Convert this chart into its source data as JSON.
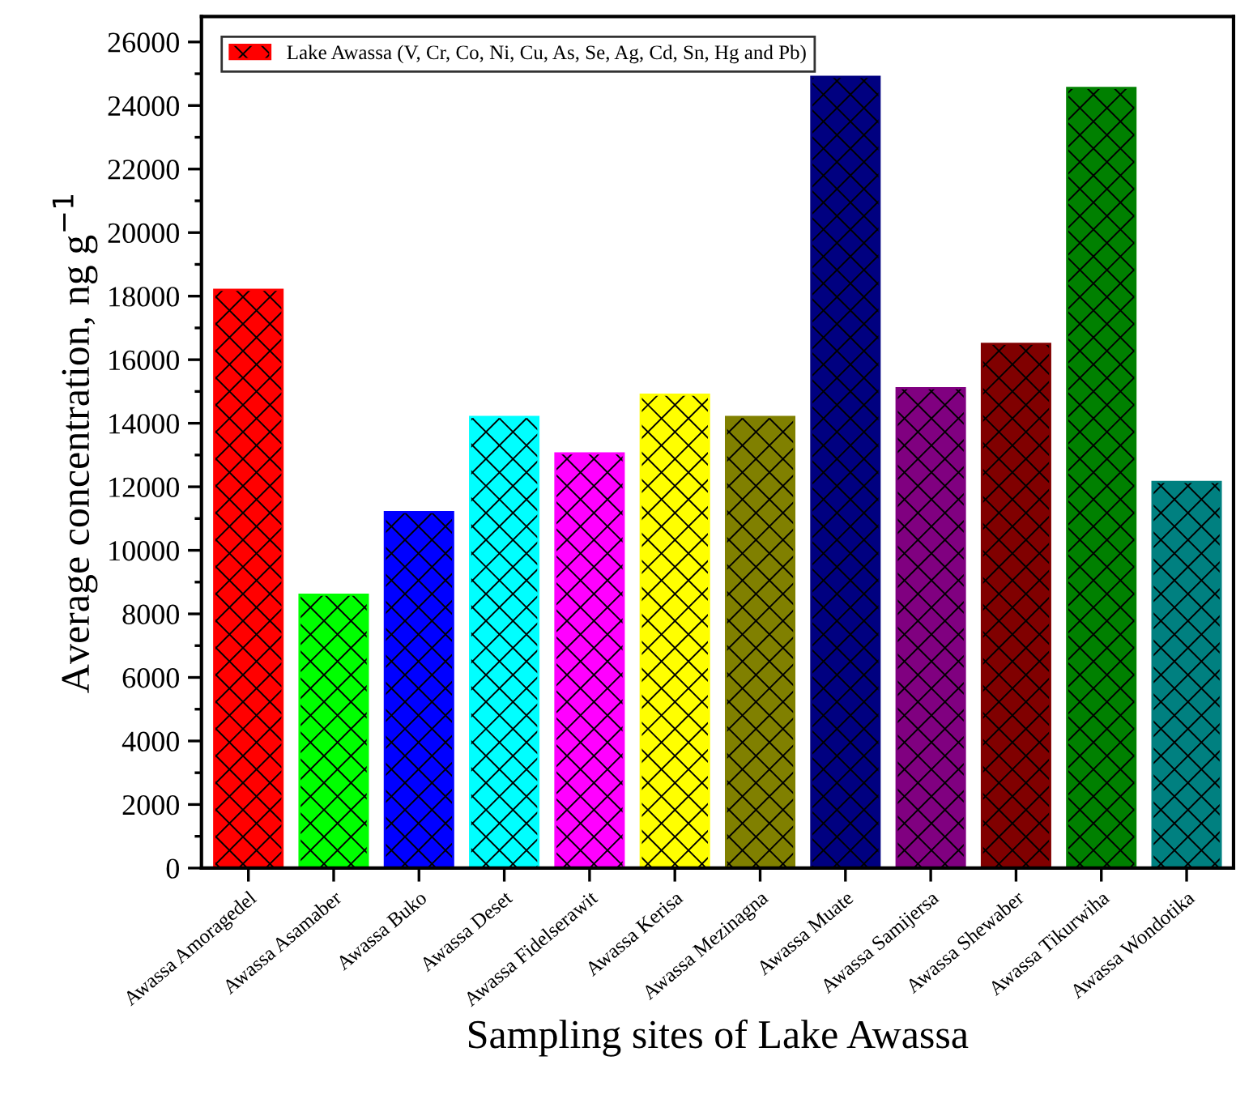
{
  "chart_data": {
    "type": "bar",
    "xlabel": "Sampling sites of Lake Awassa",
    "ylabel": "Average concentration, ng g$^{−1}$",
    "categories": [
      "Awassa Amoragedel",
      "Awassa Asamaber",
      "Awassa Buko",
      "Awassa Deset",
      "Awassa Fidelserawit",
      "Awassa Kerisa",
      "Awassa Mezinagna",
      "Awassa Muate",
      "Awassa Samijersa",
      "Awassa Shewaber",
      "Awassa Tikurwiha",
      "Awassa Wondotika"
    ],
    "series": [
      {
        "name": "Lake Awassa (V, Cr, Co, Ni, Cu, As, Se, Ag, Cd, Sn, Hg and Pb)",
        "color": "#ff0000",
        "colors": [
          "#ff0000",
          "#00ff00",
          "#0000ff",
          "#00ffff",
          "#ff00ff",
          "#ffff00",
          "#808000",
          "#000080",
          "#800080",
          "#800000",
          "#008000",
          "#008080"
        ],
        "values": [
          18200,
          8600,
          11200,
          14200,
          13050,
          14900,
          14200,
          24900,
          15100,
          16500,
          24550,
          12150
        ]
      }
    ],
    "ylim": [
      0,
      26800
    ],
    "yticks": [
      0,
      {
        "value": 1000,
        "label": null
      },
      2000,
      {
        "value": 3000,
        "label": null
      },
      4000,
      {
        "value": 5000,
        "label": null
      },
      6000,
      {
        "value": 7000,
        "label": null
      },
      8000,
      {
        "value": 9000,
        "label": null
      },
      10000,
      {
        "value": 11000,
        "label": null
      },
      12000,
      {
        "value": 13000,
        "label": null
      },
      14000,
      {
        "value": 15000,
        "label": null
      },
      16000,
      {
        "value": 17000,
        "label": null
      },
      18000,
      {
        "value": 19000,
        "label": null
      },
      20000,
      {
        "value": 21000,
        "label": null
      },
      22000,
      {
        "value": 23000,
        "label": null
      },
      24000,
      {
        "value": 25000,
        "label": null
      },
      26000
    ],
    "grid": false,
    "legend": "top left"
  }
}
